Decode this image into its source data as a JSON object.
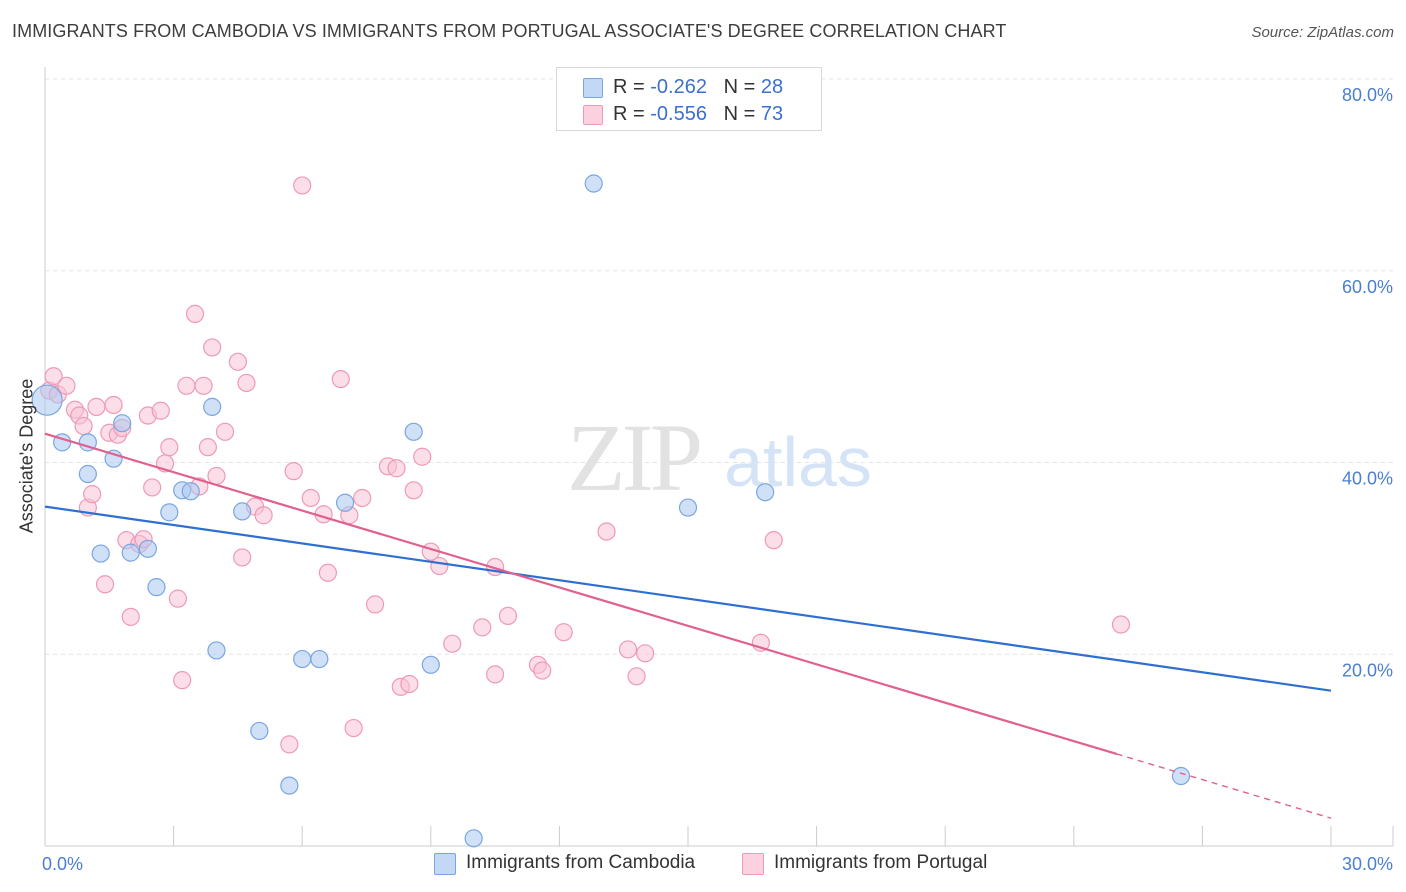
{
  "header": {
    "title": "IMMIGRANTS FROM CAMBODIA VS IMMIGRANTS FROM PORTUGAL ASSOCIATE'S DEGREE CORRELATION CHART",
    "source": "Source: ZipAtlas.com"
  },
  "watermark": {
    "zip": "ZIP",
    "atlas": "atlas"
  },
  "legend_top": [
    {
      "r_label": "R = ",
      "r_value": "-0.262",
      "n_label": "N = ",
      "n_value": "28"
    },
    {
      "r_label": "R = ",
      "r_value": "-0.556",
      "n_label": "N = ",
      "n_value": "73"
    }
  ],
  "colors": {
    "cambodia_fill": "#aac8f0",
    "cambodia_stroke": "#7aa6e0",
    "cambodia_line": "#2e6fd0",
    "portugal_fill": "#f8c2d4",
    "portugal_stroke": "#ee9ab6",
    "portugal_line": "#e0608f",
    "axis_text": "#4a7fd0",
    "grid": "#e4e4e4"
  },
  "chart_data": {
    "type": "scatter",
    "title": "IMMIGRANTS FROM CAMBODIA VS IMMIGRANTS FROM PORTUGAL ASSOCIATE'S DEGREE CORRELATION CHART",
    "xlabel": "",
    "ylabel": "Associate's Degree",
    "xlim": [
      0,
      30
    ],
    "ylim": [
      0,
      80
    ],
    "x_tick_labels": [
      "0.0%",
      "30.0%"
    ],
    "y_ticks": [
      20,
      40,
      60,
      80
    ],
    "y_tick_labels": [
      "20.0%",
      "40.0%",
      "60.0%",
      "80.0%"
    ],
    "grid": true,
    "legend_position": "top-center",
    "series": [
      {
        "name": "Immigrants from Cambodia",
        "r": -0.262,
        "n": 28,
        "trend": {
          "x0": 0,
          "y0": 35.4,
          "x1": 30,
          "y1": 16.2
        },
        "points": [
          [
            0.05,
            46.5
          ],
          [
            0.4,
            42.1
          ],
          [
            1.0,
            42.1
          ],
          [
            1.0,
            38.8
          ],
          [
            1.3,
            30.5
          ],
          [
            1.6,
            40.4
          ],
          [
            1.8,
            44.1
          ],
          [
            2.0,
            30.6
          ],
          [
            2.4,
            31.0
          ],
          [
            2.6,
            27.0
          ],
          [
            2.9,
            34.8
          ],
          [
            3.2,
            37.1
          ],
          [
            3.4,
            37.0
          ],
          [
            3.9,
            45.8
          ],
          [
            4.0,
            20.4
          ],
          [
            4.6,
            34.9
          ],
          [
            5.0,
            12.0
          ],
          [
            5.7,
            6.3
          ],
          [
            6.0,
            19.5
          ],
          [
            6.4,
            19.5
          ],
          [
            7.0,
            35.8
          ],
          [
            8.6,
            43.2
          ],
          [
            9.0,
            18.9
          ],
          [
            10.0,
            0.8
          ],
          [
            12.8,
            69.1
          ],
          [
            15.0,
            35.3
          ],
          [
            16.8,
            36.9
          ],
          [
            26.5,
            7.3
          ]
        ]
      },
      {
        "name": "Immigrants from Portugal",
        "r": -0.556,
        "n": 73,
        "trend": {
          "x0": 0,
          "y0": 43.0,
          "x1": 25,
          "y1": 9.6,
          "dashed_to_x": 30,
          "dashed_to_y": 2.9
        },
        "points": [
          [
            0.1,
            47.5
          ],
          [
            0.2,
            49.0
          ],
          [
            0.3,
            47.1
          ],
          [
            0.5,
            48.0
          ],
          [
            0.7,
            45.5
          ],
          [
            0.8,
            44.9
          ],
          [
            0.9,
            43.8
          ],
          [
            1.0,
            35.3
          ],
          [
            1.1,
            36.7
          ],
          [
            1.2,
            45.8
          ],
          [
            1.4,
            27.3
          ],
          [
            1.5,
            43.1
          ],
          [
            1.6,
            46.0
          ],
          [
            1.7,
            42.9
          ],
          [
            1.8,
            43.6
          ],
          [
            1.9,
            31.9
          ],
          [
            2.0,
            23.9
          ],
          [
            2.2,
            31.5
          ],
          [
            2.3,
            32.0
          ],
          [
            2.4,
            44.9
          ],
          [
            2.5,
            37.4
          ],
          [
            2.7,
            45.4
          ],
          [
            2.8,
            39.9
          ],
          [
            2.9,
            41.6
          ],
          [
            3.1,
            25.8
          ],
          [
            3.2,
            17.3
          ],
          [
            3.3,
            48.0
          ],
          [
            3.5,
            55.5
          ],
          [
            3.6,
            37.5
          ],
          [
            3.7,
            48.0
          ],
          [
            3.8,
            41.6
          ],
          [
            3.9,
            52.0
          ],
          [
            4.0,
            38.6
          ],
          [
            4.2,
            43.2
          ],
          [
            4.5,
            50.5
          ],
          [
            4.6,
            30.1
          ],
          [
            4.7,
            48.3
          ],
          [
            4.9,
            35.4
          ],
          [
            5.1,
            34.5
          ],
          [
            5.7,
            10.6
          ],
          [
            5.8,
            39.1
          ],
          [
            6.0,
            68.9
          ],
          [
            6.2,
            36.3
          ],
          [
            6.5,
            34.6
          ],
          [
            6.6,
            28.5
          ],
          [
            6.9,
            48.7
          ],
          [
            7.1,
            34.5
          ],
          [
            7.2,
            12.3
          ],
          [
            7.4,
            36.3
          ],
          [
            7.7,
            25.2
          ],
          [
            8.0,
            39.6
          ],
          [
            8.2,
            39.4
          ],
          [
            8.3,
            16.6
          ],
          [
            8.5,
            16.9
          ],
          [
            8.6,
            37.1
          ],
          [
            8.8,
            40.6
          ],
          [
            9.0,
            30.7
          ],
          [
            9.2,
            29.2
          ],
          [
            9.5,
            21.1
          ],
          [
            10.2,
            22.8
          ],
          [
            10.5,
            29.1
          ],
          [
            10.5,
            17.9
          ],
          [
            10.8,
            24.0
          ],
          [
            11.5,
            18.9
          ],
          [
            11.6,
            18.3
          ],
          [
            12.1,
            22.3
          ],
          [
            13.1,
            32.8
          ],
          [
            13.6,
            20.5
          ],
          [
            13.8,
            17.7
          ],
          [
            14.0,
            20.1
          ],
          [
            16.7,
            21.2
          ],
          [
            17.0,
            31.9
          ],
          [
            25.1,
            23.1
          ]
        ]
      }
    ]
  },
  "legend_bottom": [
    {
      "label": "Immigrants from Cambodia"
    },
    {
      "label": "Immigrants from Portugal"
    }
  ]
}
